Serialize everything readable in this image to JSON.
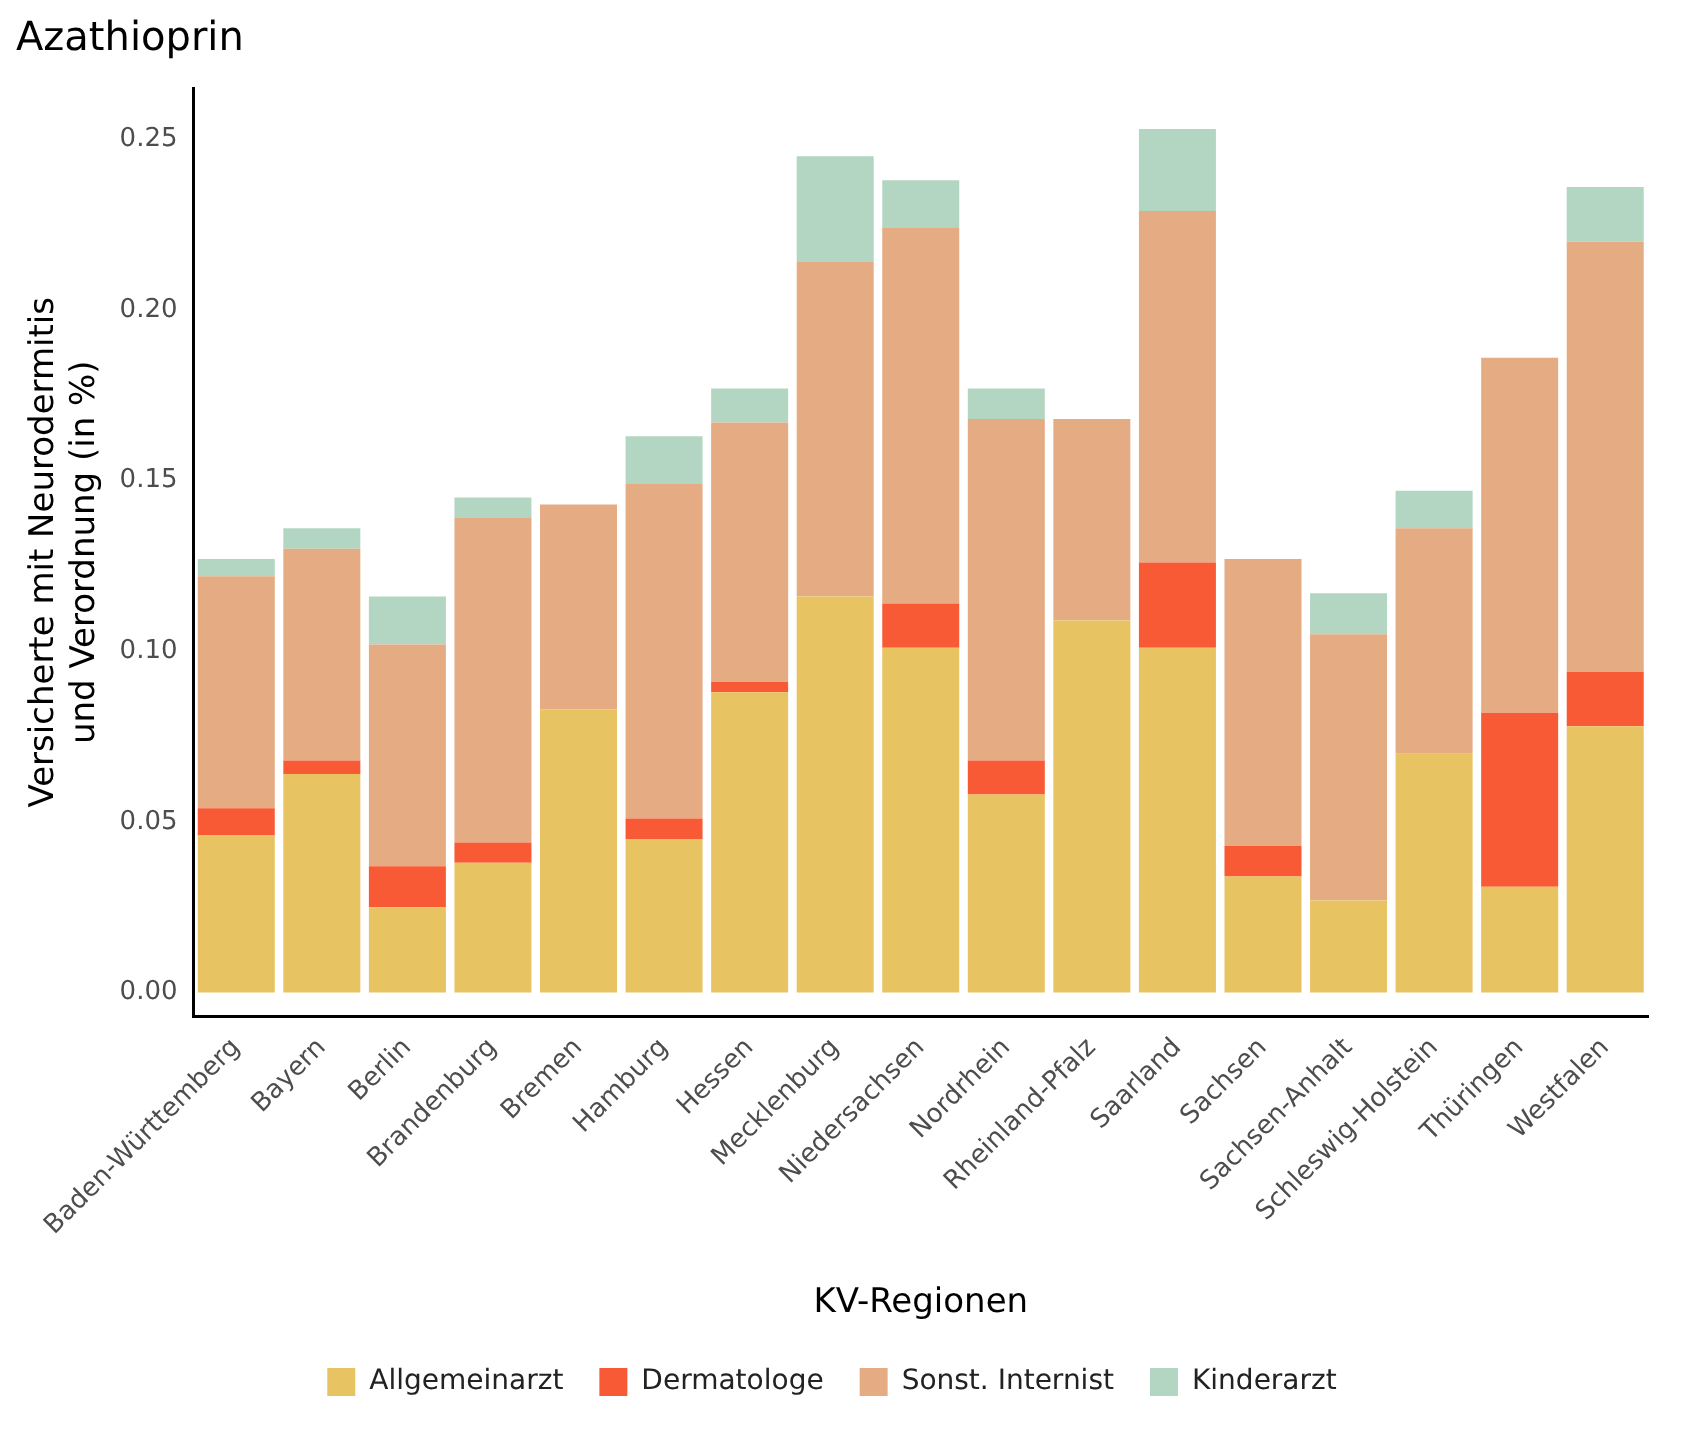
{
  "chart_data": {
    "type": "bar",
    "title": "Azathioprin",
    "xlabel": "KV-Regionen",
    "ylabel": "Versicherte mit Neurodermitis\nund Verordnung (in %)",
    "stacked": true,
    "legend": "bottom",
    "grid": false,
    "categories": [
      "Baden-Württemberg",
      "Bayern",
      "Berlin",
      "Brandenburg",
      "Bremen",
      "Hamburg",
      "Hessen",
      "Mecklenburg",
      "Niedersachsen",
      "Nordrhein",
      "Rheinland-Pfalz",
      "Saarland",
      "Sachsen",
      "Sachsen-Anhalt",
      "Schleswig-Holstein",
      "Thüringen",
      "Westfalen"
    ],
    "series": [
      {
        "name": "Allgemeinarzt",
        "color": "#e8c362",
        "values": [
          0.046,
          0.064,
          0.025,
          0.038,
          0.083,
          0.045,
          0.088,
          0.116,
          0.101,
          0.058,
          0.109,
          0.101,
          0.034,
          0.027,
          0.07,
          0.031,
          0.078
        ]
      },
      {
        "name": "Dermatologe",
        "color": "#f95a36",
        "values": [
          0.008,
          0.004,
          0.012,
          0.006,
          0,
          0.006,
          0.003,
          0,
          0.013,
          0.01,
          0,
          0.025,
          0.009,
          0,
          0,
          0.051,
          0.016
        ]
      },
      {
        "name": "Sonst. Internist",
        "color": "#e5ac84",
        "values": [
          0.068,
          0.062,
          0.065,
          0.095,
          0.06,
          0.098,
          0.076,
          0.098,
          0.11,
          0.1,
          0.059,
          0.103,
          0.084,
          0.078,
          0.066,
          0.104,
          0.126
        ]
      },
      {
        "name": "Kinderarzt",
        "color": "#b3d6c3",
        "values": [
          0.005,
          0.006,
          0.014,
          0.006,
          0,
          0.014,
          0.01,
          0.031,
          0.014,
          0.009,
          0,
          0.024,
          0,
          0.012,
          0.011,
          0,
          0.016
        ]
      }
    ],
    "ylim": [
      -0.007,
      0.265
    ],
    "yticks": [
      {
        "value": 0,
        "label": "0.00"
      },
      {
        "value": 0.05,
        "label": "0.05"
      },
      {
        "value": 0.1,
        "label": "0.10"
      },
      {
        "value": 0.15,
        "label": "0.15"
      },
      {
        "value": 0.2,
        "label": "0.20"
      },
      {
        "value": 0.25,
        "label": "0.25"
      }
    ]
  }
}
